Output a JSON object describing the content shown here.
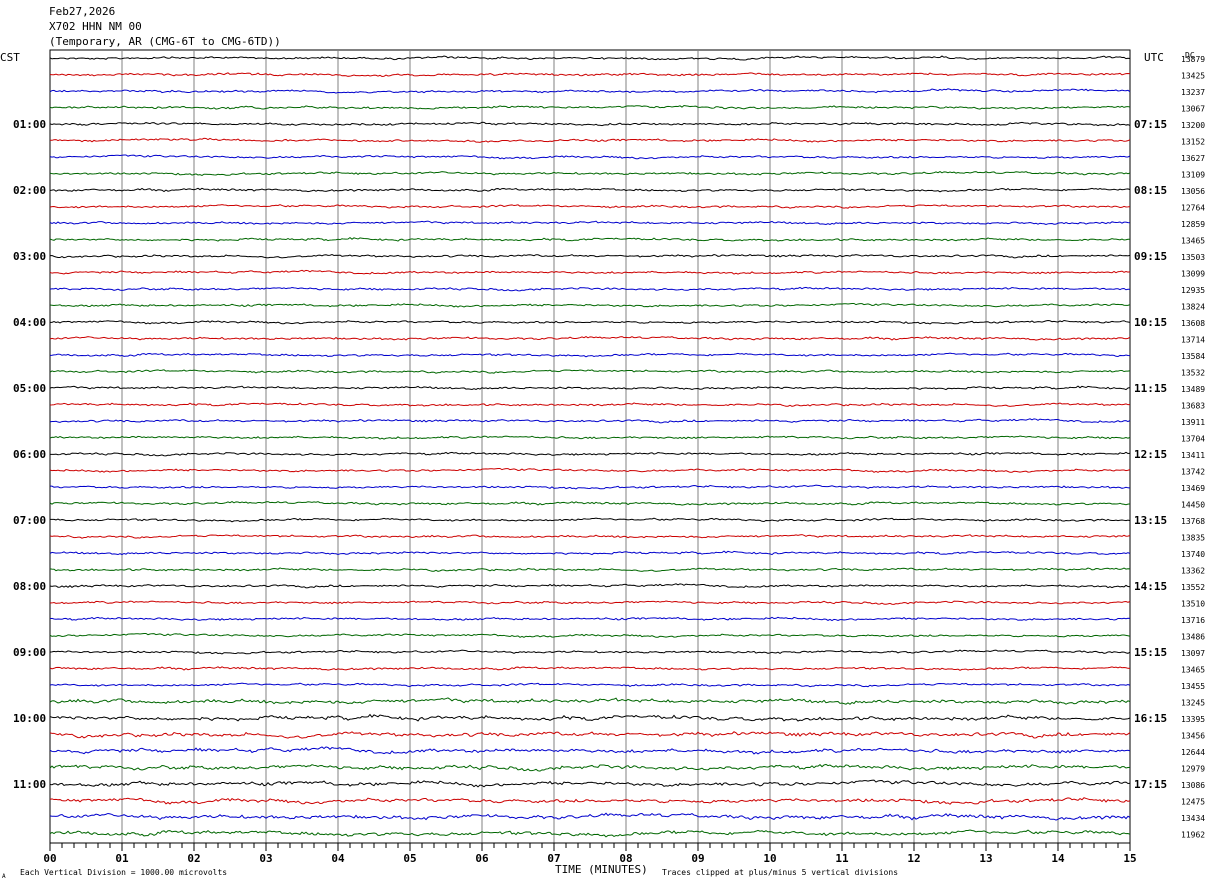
{
  "header": {
    "date": "Feb27,2026",
    "station": "X702 HHN NM 00",
    "network": "(Temporary, AR (CMG-6T to CMG-6TD))"
  },
  "left_timezone": "CST",
  "right_timezone": "UTC",
  "right_top_label": "DC",
  "footer": {
    "scale_note": "Each Vertical Division = 1000.00 microvolts",
    "xlabel": "TIME (MINUTES)",
    "clip_note": "Traces clipped at plus/minus 5 vertical divisions",
    "corner_mark": "A"
  },
  "colors": {
    "trace_cycle": [
      "#000000",
      "#cc0000",
      "#0000cc",
      "#006600"
    ],
    "grid": "#808080",
    "background": "#ffffff",
    "text": "#000000"
  },
  "chart_data": {
    "type": "line",
    "description_kind": "helicorder",
    "x_range_minutes": [
      0,
      15
    ],
    "x_ticks": [
      "00",
      "01",
      "02",
      "03",
      "04",
      "05",
      "06",
      "07",
      "08",
      "09",
      "10",
      "11",
      "12",
      "13",
      "14",
      "15"
    ],
    "trace_count": 48,
    "left_hour_labels": [
      "01:00",
      "02:00",
      "03:00",
      "04:00",
      "05:00",
      "06:00",
      "07:00",
      "08:00",
      "09:00",
      "10:00",
      "11:00"
    ],
    "right_hour_labels": [
      "07:15",
      "08:15",
      "09:15",
      "10:15",
      "11:15",
      "12:15",
      "13:15",
      "14:15",
      "15:15",
      "16:15",
      "17:15"
    ],
    "dc_offsets": [
      "13879",
      "13425",
      "13237",
      "13067",
      "13200",
      "13152",
      "13627",
      "13109",
      "13056",
      "12764",
      "12859",
      "13465",
      "13503",
      "13099",
      "12935",
      "13824",
      "13608",
      "13714",
      "13584",
      "13532",
      "13489",
      "13683",
      "13911",
      "13704",
      "13411",
      "13742",
      "13469",
      "14450",
      "13768",
      "13835",
      "13740",
      "13362",
      "13552",
      "13510",
      "13716",
      "13486",
      "13097",
      "13465",
      "13455",
      "13245",
      "13395",
      "13456",
      "12644",
      "12979",
      "13086",
      "12475",
      "13434",
      "11962"
    ]
  }
}
